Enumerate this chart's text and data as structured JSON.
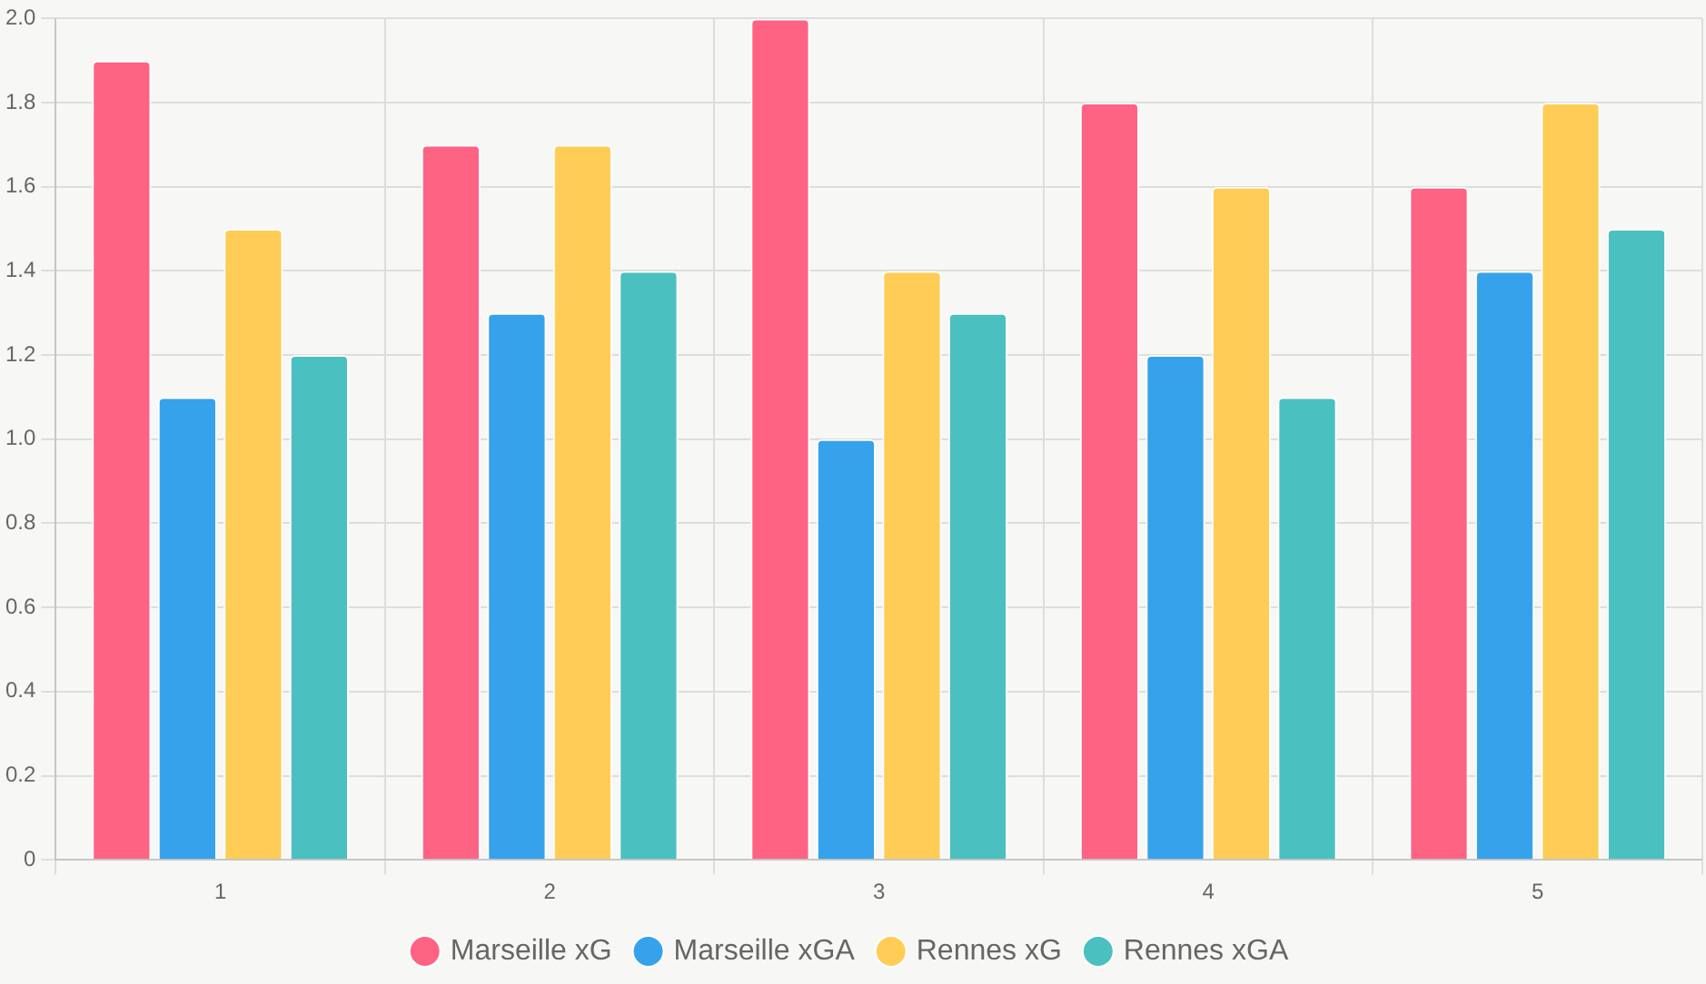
{
  "chart_data": {
    "type": "bar",
    "categories": [
      "1",
      "2",
      "3",
      "4",
      "5"
    ],
    "series": [
      {
        "name": "Marseille xG",
        "color": "#ff6384",
        "values": [
          1.9,
          1.7,
          2.0,
          1.8,
          1.6
        ]
      },
      {
        "name": "Marseille xGA",
        "color": "#36a2eb",
        "values": [
          1.1,
          1.3,
          1.0,
          1.2,
          1.4
        ]
      },
      {
        "name": "Rennes xG",
        "color": "#ffcd56",
        "values": [
          1.5,
          1.7,
          1.4,
          1.6,
          1.8
        ]
      },
      {
        "name": "Rennes xGA",
        "color": "#4bc0c0",
        "values": [
          1.2,
          1.4,
          1.3,
          1.1,
          1.5
        ]
      }
    ],
    "ylim": [
      0,
      2.0
    ],
    "yticks": [
      0,
      0.2,
      0.4,
      0.6,
      0.8,
      {
        "value": 1.0,
        "label": "1.0"
      },
      1.2,
      1.4,
      1.6,
      1.8,
      {
        "value": 2.0,
        "label": "2.0"
      }
    ],
    "grid": true,
    "legend": "bottom"
  }
}
